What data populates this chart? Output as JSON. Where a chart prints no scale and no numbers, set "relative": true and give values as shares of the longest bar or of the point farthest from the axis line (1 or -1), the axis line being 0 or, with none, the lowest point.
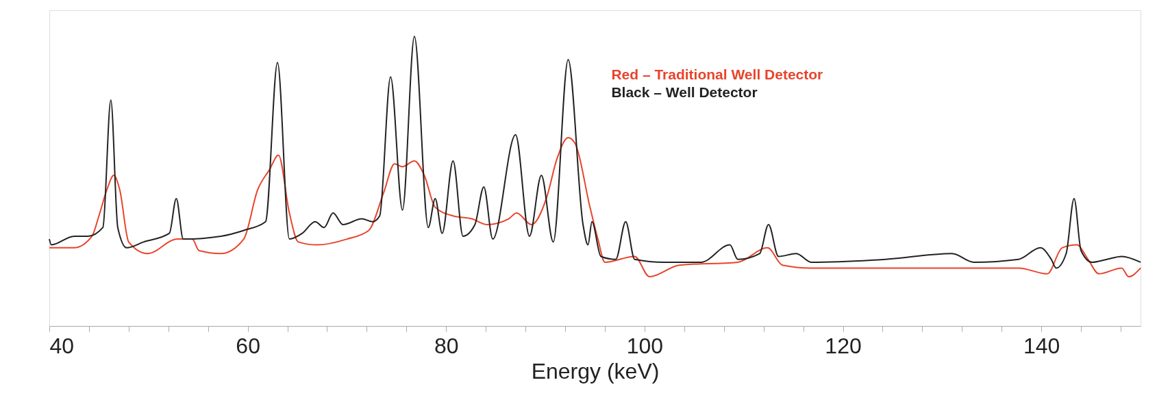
{
  "chart_data": {
    "type": "line",
    "relative": true,
    "xlabel": "Energy (keV)",
    "xlim": [
      40,
      150
    ],
    "xticks": [
      40,
      {
        "value": 44,
        "label": null
      },
      {
        "value": 48,
        "label": null
      },
      {
        "value": 52,
        "label": null
      },
      {
        "value": 56,
        "label": null
      },
      60,
      {
        "value": 64,
        "label": null
      },
      {
        "value": 68,
        "label": null
      },
      {
        "value": 72,
        "label": null
      },
      {
        "value": 76,
        "label": null
      },
      80,
      {
        "value": 84,
        "label": null
      },
      {
        "value": 88,
        "label": null
      },
      {
        "value": 92,
        "label": null
      },
      {
        "value": 96,
        "label": null
      },
      100,
      {
        "value": 104,
        "label": null
      },
      {
        "value": 108,
        "label": null
      },
      {
        "value": 112,
        "label": null
      },
      {
        "value": 116,
        "label": null
      },
      120,
      {
        "value": 124,
        "label": null
      },
      {
        "value": 128,
        "label": null
      },
      {
        "value": 132,
        "label": null
      },
      {
        "value": 136,
        "label": null
      },
      140,
      {
        "value": 144,
        "label": null
      },
      {
        "value": 148,
        "label": null
      }
    ],
    "legend": "top right",
    "grid": false,
    "marker": "none",
    "line_style": "solid",
    "series": [
      {
        "name": "Red – Traditional Well Detector",
        "color": "#e8442c",
        "x": [
          40,
          42.5,
          44.3,
          45.0,
          45.8,
          46.5,
          47.1,
          48.0,
          49.9,
          52.9,
          54.4,
          55.1,
          57.3,
          59.6,
          61.0,
          62.2,
          63.1,
          64.2,
          65.1,
          67.0,
          70.0,
          72.2,
          73.7,
          74.8,
          75.6,
          76.8,
          77.8,
          78.9,
          80.7,
          82.6,
          84.1,
          86.3,
          87.1,
          88.6,
          90.1,
          91.2,
          92.3,
          93.0,
          94.5,
          95.3,
          96.0,
          99.0,
          100.5,
          103.5,
          109.4,
          112.4,
          113.9,
          116.8,
          124.3,
          131.7,
          137.7,
          140.6,
          142.1,
          143.6,
          144.7,
          145.8,
          148.1,
          148.8,
          150
        ],
        "values": [
          0.27,
          0.27,
          0.31,
          0.38,
          0.47,
          0.52,
          0.47,
          0.29,
          0.25,
          0.3,
          0.3,
          0.26,
          0.25,
          0.3,
          0.47,
          0.54,
          0.59,
          0.39,
          0.29,
          0.28,
          0.3,
          0.33,
          0.46,
          0.56,
          0.55,
          0.57,
          0.52,
          0.41,
          0.38,
          0.37,
          0.35,
          0.37,
          0.39,
          0.35,
          0.44,
          0.58,
          0.65,
          0.63,
          0.41,
          0.3,
          0.22,
          0.24,
          0.17,
          0.21,
          0.22,
          0.27,
          0.21,
          0.2,
          0.2,
          0.2,
          0.2,
          0.18,
          0.27,
          0.28,
          0.23,
          0.18,
          0.2,
          0.17,
          0.2
        ]
      },
      {
        "name": "Black – Well Detector",
        "color": "#222222",
        "x": [
          40,
          40.2,
          42.5,
          43.9,
          45.4,
          46.2,
          46.9,
          47.8,
          49.5,
          52.1,
          52.8,
          53.5,
          57.3,
          59.6,
          61.8,
          63.0,
          64.2,
          65.5,
          66.8,
          67.7,
          68.6,
          69.6,
          71.5,
          72.6,
          73.3,
          74.4,
          75.6,
          76.8,
          78.2,
          78.9,
          79.6,
          80.7,
          81.7,
          82.9,
          83.8,
          84.7,
          87.0,
          88.4,
          89.6,
          90.8,
          92.3,
          93.8,
          94.3,
          94.7,
          95.6,
          97.1,
          98.1,
          99.0,
          102,
          105.7,
          108.6,
          109.4,
          111.6,
          112.5,
          113.5,
          115.3,
          116.8,
          124.3,
          131.0,
          133.2,
          137.7,
          139.9,
          141.0,
          141.5,
          142.5,
          143.3,
          144.0,
          145.1,
          146.6,
          148.1,
          150
        ],
        "values": [
          0.3,
          0.28,
          0.31,
          0.31,
          0.34,
          0.78,
          0.34,
          0.27,
          0.29,
          0.32,
          0.44,
          0.3,
          0.31,
          0.33,
          0.36,
          0.91,
          0.3,
          0.32,
          0.36,
          0.34,
          0.39,
          0.35,
          0.37,
          0.36,
          0.38,
          0.86,
          0.4,
          1.0,
          0.34,
          0.44,
          0.32,
          0.57,
          0.31,
          0.35,
          0.48,
          0.3,
          0.66,
          0.31,
          0.52,
          0.29,
          0.92,
          0.35,
          0.28,
          0.36,
          0.24,
          0.23,
          0.36,
          0.23,
          0.22,
          0.22,
          0.28,
          0.23,
          0.25,
          0.35,
          0.24,
          0.25,
          0.22,
          0.23,
          0.25,
          0.22,
          0.23,
          0.27,
          0.23,
          0.2,
          0.25,
          0.44,
          0.26,
          0.22,
          0.23,
          0.24,
          0.22
        ]
      }
    ]
  }
}
